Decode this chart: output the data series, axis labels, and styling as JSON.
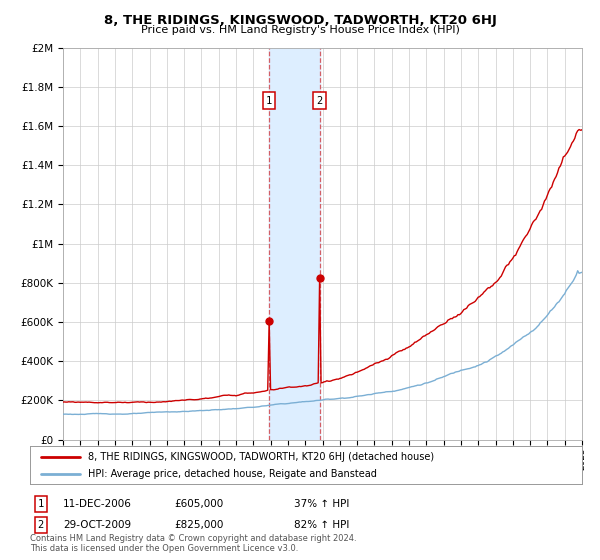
{
  "title": "8, THE RIDINGS, KINGSWOOD, TADWORTH, KT20 6HJ",
  "subtitle": "Price paid vs. HM Land Registry's House Price Index (HPI)",
  "legend_line1": "8, THE RIDINGS, KINGSWOOD, TADWORTH, KT20 6HJ (detached house)",
  "legend_line2": "HPI: Average price, detached house, Reigate and Banstead",
  "annotation1_label": "1",
  "annotation1_date": "11-DEC-2006",
  "annotation1_price": "£605,000",
  "annotation1_hpi": "37% ↑ HPI",
  "annotation1_year": 2006.92,
  "annotation1_value": 605000,
  "annotation2_label": "2",
  "annotation2_date": "29-OCT-2009",
  "annotation2_price": "£825,000",
  "annotation2_hpi": "82% ↑ HPI",
  "annotation2_year": 2009.83,
  "annotation2_value": 825000,
  "xmin": 1995,
  "xmax": 2025,
  "ymin": 0,
  "ymax": 2000000,
  "yticks": [
    0,
    200000,
    400000,
    600000,
    800000,
    1000000,
    1200000,
    1400000,
    1600000,
    1800000,
    2000000
  ],
  "ytick_labels": [
    "£0",
    "£200K",
    "£400K",
    "£600K",
    "£800K",
    "£1M",
    "£1.2M",
    "£1.4M",
    "£1.6M",
    "£1.8M",
    "£2M"
  ],
  "red_color": "#cc0000",
  "blue_color": "#7bafd4",
  "shade_color": "#ddeeff",
  "grid_color": "#cccccc",
  "background_color": "#ffffff",
  "footnote_line1": "Contains HM Land Registry data © Crown copyright and database right 2024.",
  "footnote_line2": "This data is licensed under the Open Government Licence v3.0."
}
